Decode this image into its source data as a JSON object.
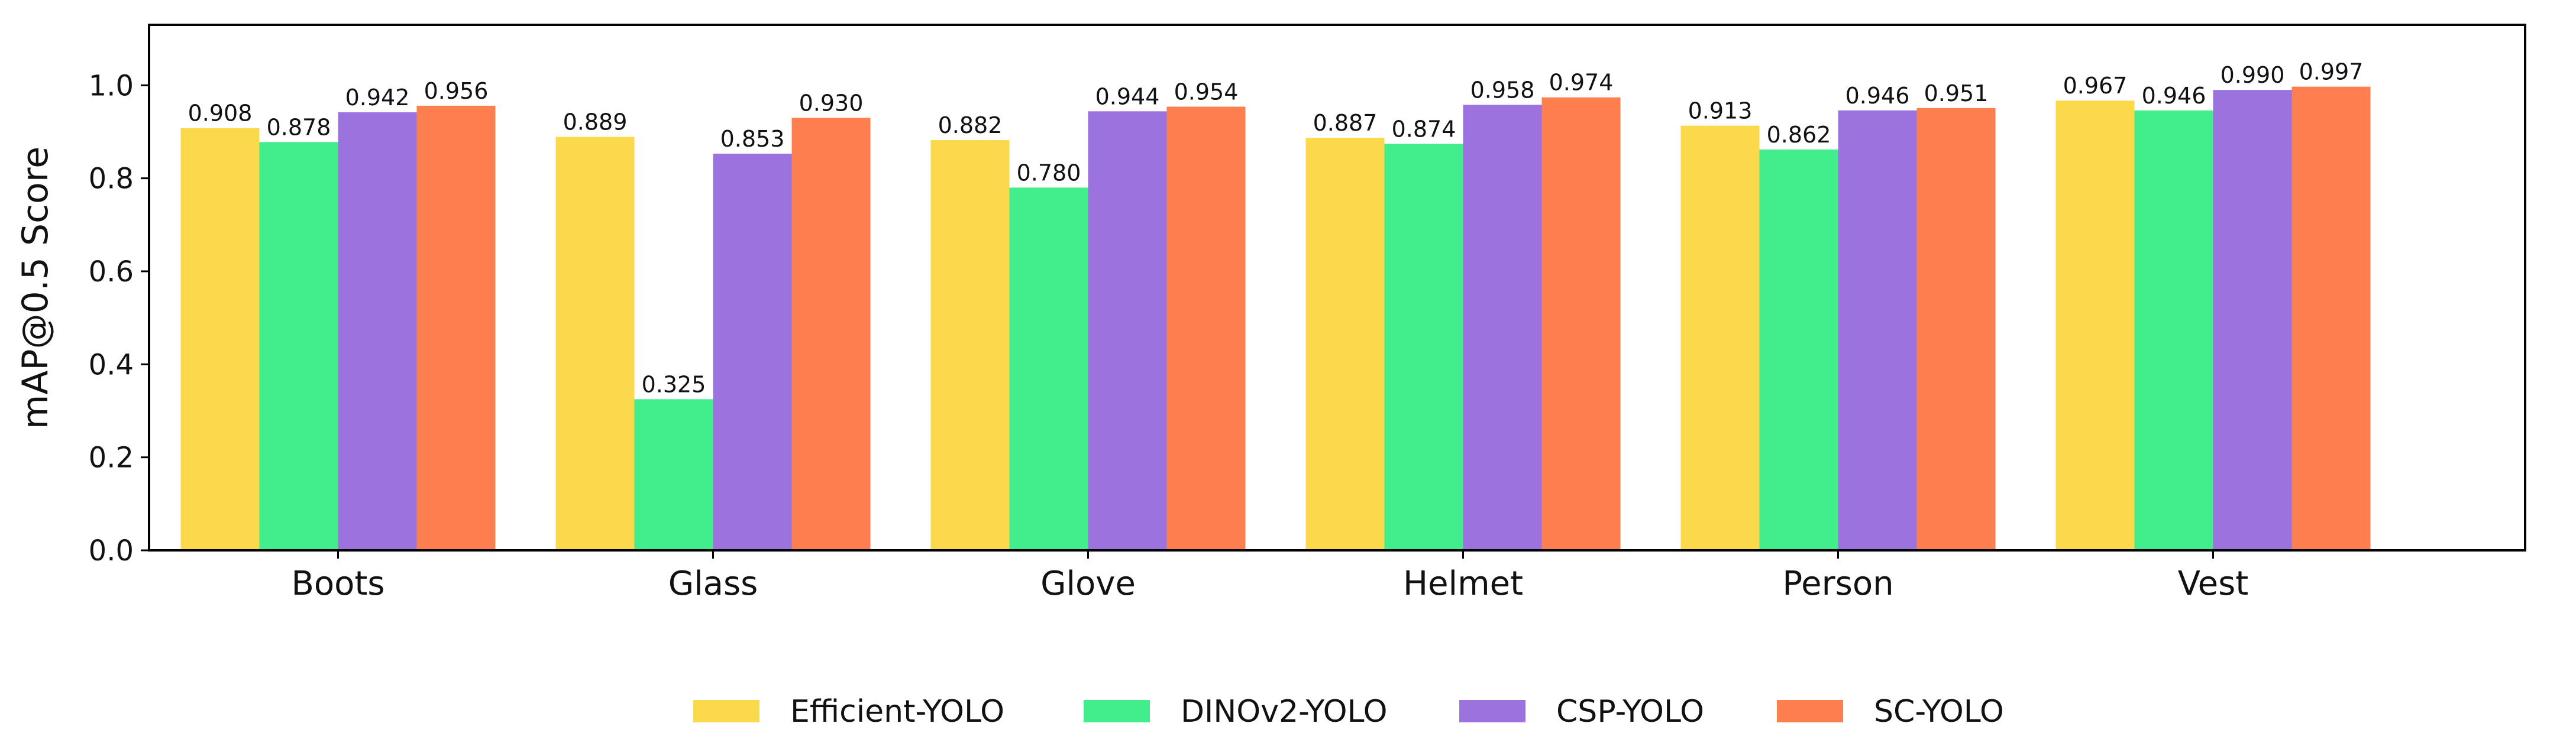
{
  "chart_data": {
    "type": "bar",
    "title": "",
    "xlabel": "",
    "ylabel": "mAP@0.5 Score",
    "ylim": [
      0,
      1.13
    ],
    "yticks": [
      0.0,
      0.2,
      0.4,
      0.6,
      0.8,
      1.0
    ],
    "ytick_labels": [
      "0.0",
      "0.2",
      "0.4",
      "0.6",
      "0.8",
      "1.0"
    ],
    "grid": false,
    "legend_position": "bottom-center",
    "categories": [
      "Boots",
      "Glass",
      "Glove",
      "Helmet",
      "Person",
      "Vest"
    ],
    "series": [
      {
        "name": "Efficient-YOLO",
        "color": "#FCD94A",
        "values": [
          0.908,
          0.889,
          0.882,
          0.887,
          0.913,
          0.967
        ],
        "labels": [
          "0.908",
          "0.889",
          "0.882",
          "0.887",
          "0.913",
          "0.967"
        ]
      },
      {
        "name": "DINOv2-YOLO",
        "color": "#42EE8B",
        "values": [
          0.878,
          0.325,
          0.78,
          0.874,
          0.862,
          0.946
        ],
        "labels": [
          "0.878",
          "0.325",
          "0.780",
          "0.874",
          "0.862",
          "0.946"
        ]
      },
      {
        "name": "CSP-YOLO",
        "color": "#9C72DF",
        "values": [
          0.942,
          0.853,
          0.944,
          0.958,
          0.946,
          0.99
        ],
        "labels": [
          "0.942",
          "0.853",
          "0.944",
          "0.958",
          "0.946",
          "0.990"
        ]
      },
      {
        "name": "SC-YOLO",
        "color": "#FD7F4F",
        "values": [
          0.956,
          0.93,
          0.954,
          0.974,
          0.951,
          0.997
        ],
        "labels": [
          "0.956",
          "0.930",
          "0.954",
          "0.974",
          "0.951",
          "0.997"
        ]
      }
    ]
  }
}
